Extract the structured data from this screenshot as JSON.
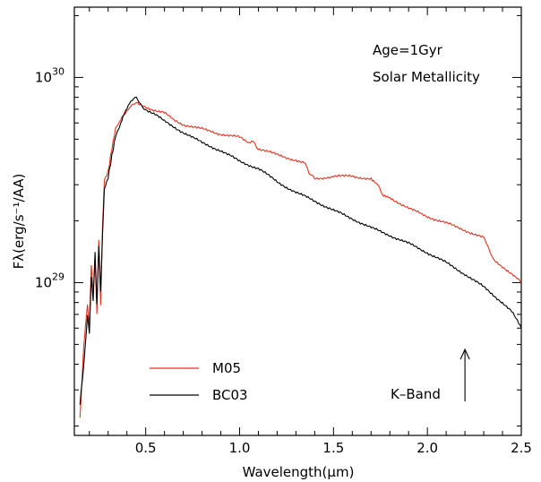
{
  "chart_data": {
    "type": "line",
    "title": "",
    "xlabel": "Wavelength(μm)",
    "ylabel": "Fλ(erg/s⁻¹/AA)",
    "x_scale": "linear",
    "y_scale": "log",
    "xlim": [
      0.12,
      2.5
    ],
    "ylim": [
      1.8e+28,
      2.2e+30
    ],
    "grid": false,
    "x_ticks": [
      0.5,
      1.0,
      1.5,
      2.0,
      2.5
    ],
    "x_tick_labels": [
      "0.5",
      "1.0",
      "1.5",
      "2.0",
      "2.5"
    ],
    "y_major_ticks": [
      1e+29,
      1e+30
    ],
    "y_tick_labels": [
      {
        "base": "10",
        "exp": "29"
      },
      {
        "base": "10",
        "exp": "30"
      }
    ],
    "y_minor_ticks": [
      2e+28,
      3e+28,
      4e+28,
      5e+28,
      6e+28,
      7e+28,
      8e+28,
      9e+28,
      2e+29,
      3e+29,
      4e+29,
      5e+29,
      6e+29,
      7e+29,
      8e+29,
      9e+29,
      2e+30
    ],
    "legend_position": "bottom-left",
    "annotations": {
      "age": "Age=1Gyr",
      "metallicity": "Solar Metallicity",
      "kband": "K–Band",
      "kband_arrow_x": 2.2
    },
    "series": [
      {
        "name": "M05",
        "color": "#e8321e",
        "x": [
          0.15,
          0.17,
          0.19,
          0.2,
          0.21,
          0.22,
          0.23,
          0.24,
          0.25,
          0.26,
          0.27,
          0.28,
          0.3,
          0.32,
          0.34,
          0.36,
          0.38,
          0.4,
          0.42,
          0.45,
          0.5,
          0.55,
          0.6,
          0.65,
          0.7,
          0.8,
          0.9,
          1.0,
          1.05,
          1.07,
          1.1,
          1.2,
          1.3,
          1.35,
          1.37,
          1.4,
          1.5,
          1.6,
          1.7,
          1.74,
          1.76,
          1.8,
          1.9,
          2.0,
          2.1,
          2.2,
          2.3,
          2.32,
          2.35,
          2.4,
          2.45,
          2.5
        ],
        "y": [
          2.2e+28,
          5e+28,
          8e+28,
          6e+28,
          1.2e+29,
          9e+28,
          1.3e+29,
          7e+28,
          1.6e+29,
          8e+28,
          1.8e+29,
          3.2e+29,
          3.5e+29,
          4.5e+29,
          5.6e+29,
          6e+29,
          6.5e+29,
          6.8e+29,
          7.2e+29,
          7.5e+29,
          7.2e+29,
          6.9e+29,
          6.7e+29,
          6.2e+29,
          5.9e+29,
          5.6e+29,
          5.3e+29,
          5.1e+29,
          4.8e+29,
          4.9e+29,
          4.5e+29,
          4.2e+29,
          3.95e+29,
          3.8e+29,
          3.4e+29,
          3.2e+29,
          3.3e+29,
          3.3e+29,
          3.2e+29,
          3e+29,
          2.7e+29,
          2.6e+29,
          2.3e+29,
          2.1e+29,
          1.95e+29,
          1.8e+29,
          1.65e+29,
          1.5e+29,
          1.3e+29,
          1.2e+29,
          1.1e+29,
          1e+29
        ]
      },
      {
        "name": "BC03",
        "color": "#000000",
        "x": [
          0.15,
          0.17,
          0.19,
          0.2,
          0.21,
          0.22,
          0.23,
          0.24,
          0.25,
          0.26,
          0.27,
          0.28,
          0.3,
          0.32,
          0.34,
          0.36,
          0.38,
          0.4,
          0.42,
          0.45,
          0.47,
          0.5,
          0.55,
          0.6,
          0.7,
          0.8,
          0.9,
          1.0,
          1.1,
          1.2,
          1.3,
          1.4,
          1.5,
          1.6,
          1.7,
          1.8,
          1.9,
          2.0,
          2.1,
          2.2,
          2.3,
          2.4,
          2.45,
          2.5
        ],
        "y": [
          2.6e+28,
          4e+28,
          7e+28,
          5.5e+28,
          1.1e+29,
          8e+28,
          1.4e+29,
          8e+28,
          1.5e+29,
          9e+28,
          1.7e+29,
          2.9e+29,
          3.3e+29,
          4.2e+29,
          5.2e+29,
          5.7e+29,
          6.4e+29,
          7e+29,
          7.6e+29,
          8e+29,
          7.4e+29,
          7e+29,
          6.6e+29,
          6.1e+29,
          5.4e+29,
          4.8e+29,
          4.4e+29,
          3.9e+29,
          3.6e+29,
          3.1e+29,
          2.75e+29,
          2.5e+29,
          2.25e+29,
          2.05e+29,
          1.85e+29,
          1.7e+29,
          1.55e+29,
          1.4e+29,
          1.25e+29,
          1.1e+29,
          9.5e+28,
          8e+28,
          7.2e+28,
          6e+28
        ]
      }
    ]
  }
}
